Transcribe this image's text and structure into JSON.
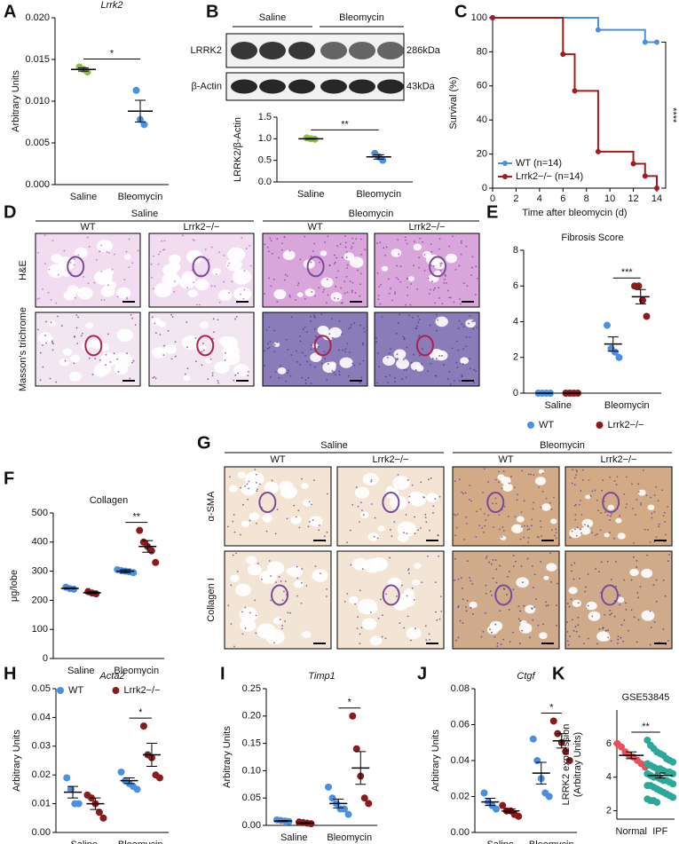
{
  "blot": {
    "panel": "B",
    "groups": [
      "Saline",
      "Bleomycin"
    ],
    "rows": [
      {
        "label": "LRRK2",
        "size": "286kDa"
      },
      {
        "label": "β-Actin",
        "size": "43kDa"
      }
    ]
  },
  "histology": [
    {
      "panel": "D",
      "groups": [
        "Saline",
        "Bleomycin"
      ],
      "columns": [
        "WT",
        "Lrrk2−/−",
        "WT",
        "Lrrk2−/−"
      ],
      "rows": [
        "H&E",
        "Masson's trichrome"
      ]
    },
    {
      "panel": "G",
      "groups": [
        "Saline",
        "Bleomycin"
      ],
      "columns": [
        "WT",
        "Lrrk2−/−",
        "WT",
        "Lrrk2−/−"
      ],
      "rows": [
        "α-SMA",
        "Collagen I"
      ]
    }
  ],
  "chart_data": [
    {
      "panel": "A",
      "type": "dotplot",
      "title": "Lrrk2",
      "title_style": "italic",
      "ylabel": "Arbitrary Units",
      "categories": [
        "Saline",
        "Bleomycin"
      ],
      "series": [
        {
          "colors": [
            "#8cbf3f",
            "#4a90e2"
          ],
          "points": [
            [
              0.0141,
              0.0138,
              0.0135
            ],
            [
              0.0113,
              0.0078,
              0.0072
            ]
          ],
          "means": [
            0.0138,
            0.0088
          ],
          "sems": [
            0.0002,
            0.0013
          ]
        }
      ],
      "ylim": [
        0,
        0.02
      ],
      "yticks": [
        {
          "value": 0,
          "label": "0.000"
        },
        {
          "value": 0.005,
          "label": "0.005"
        },
        {
          "value": 0.01,
          "label": "0.010"
        },
        {
          "value": 0.015,
          "label": "0.015"
        },
        {
          "value": 0.02,
          "label": "0.020"
        }
      ],
      "significance": "*"
    },
    {
      "type": "dotplot",
      "ylabel": "LRRK2/β-Actin",
      "categories": [
        "Saline",
        "Bleomycin"
      ],
      "series": [
        {
          "colors": [
            "#8cbf3f",
            "#4a90e2"
          ],
          "points": [
            [
              1.02,
              1.0,
              0.99
            ],
            [
              0.66,
              0.58,
              0.5
            ]
          ],
          "means": [
            1.0,
            0.58
          ],
          "sems": [
            0.01,
            0.05
          ]
        }
      ],
      "ylim": [
        0,
        1.5
      ],
      "yticks": [
        {
          "value": 0,
          "label": "0.0"
        },
        {
          "value": 0.5,
          "label": "0.5"
        },
        {
          "value": 1,
          "label": "1.0"
        },
        {
          "value": 1.5,
          "label": "1.5"
        }
      ],
      "significance": "**"
    },
    {
      "panel": "C",
      "type": "survival",
      "xlabel": "Time after bleomycin (d)",
      "ylabel": "Survival (%)",
      "series": [
        {
          "name": "WT (n=14)",
          "color": "#4a90e2",
          "x": [
            0,
            9,
            13,
            14
          ],
          "values": [
            100,
            92.9,
            85.7,
            85.7
          ]
        },
        {
          "name": "Lrrk2−/− (n=14)",
          "color": "#a01c1c",
          "x": [
            0,
            6,
            7,
            9,
            12,
            13,
            14
          ],
          "values": [
            100,
            78.6,
            57.1,
            21.4,
            14.3,
            7.1,
            0
          ]
        }
      ],
      "xlim": [
        0,
        14
      ],
      "xticks": [
        0,
        2,
        4,
        6,
        8,
        10,
        12,
        14
      ],
      "ylim": [
        0,
        100
      ],
      "yticks": [
        0,
        20,
        40,
        60,
        80,
        100
      ],
      "significance": "****"
    },
    {
      "panel": "E",
      "type": "dotplot",
      "title": "Fibrosis Score",
      "categories": [
        "Saline",
        "Bleomycin"
      ],
      "series": [
        {
          "name": "WT",
          "color": "#4a90e2",
          "points": [
            [
              0,
              0,
              0,
              0
            ],
            [
              3.8,
              2.5,
              2.3,
              2.0
            ]
          ],
          "means": [
            0,
            2.75
          ],
          "sems": [
            0,
            0.4
          ]
        },
        {
          "name": "Lrrk2−/−",
          "color": "#8b1a1a",
          "points": [
            [
              0,
              0,
              0,
              0
            ],
            [
              6.0,
              6.0,
              5.2,
              4.3
            ]
          ],
          "means": [
            0,
            5.4
          ],
          "sems": [
            0,
            0.4
          ]
        }
      ],
      "ylim": [
        0,
        8
      ],
      "yticks": [
        0,
        2,
        4,
        6,
        8
      ],
      "significance": "***",
      "legend": "bottom"
    },
    {
      "panel": "F",
      "type": "dotplot",
      "title": "Collagen",
      "ylabel": "μg/lobe",
      "categories": [
        "Saline",
        "Bleomycin"
      ],
      "series": [
        {
          "name": "WT",
          "color": "#4a90e2",
          "points": [
            [
              245,
              240,
              238
            ],
            [
              305,
              302,
              300,
              298,
              295
            ]
          ],
          "means": [
            241,
            300
          ],
          "sems": [
            2,
            5
          ]
        },
        {
          "name": "Lrrk2−/−",
          "color": "#8b1a1a",
          "points": [
            [
              230,
              225,
              222
            ],
            [
              440,
              400,
              385,
              370,
              330
            ]
          ],
          "means": [
            226,
            385
          ],
          "sems": [
            3,
            20
          ]
        }
      ],
      "ylim": [
        0,
        500
      ],
      "yticks": [
        0,
        100,
        200,
        300,
        400,
        500
      ],
      "significance": "**",
      "legend": "bottom"
    },
    {
      "panel": "H",
      "type": "dotplot",
      "title": "Acta2",
      "title_style": "italic",
      "ylabel": "Arbitrary Units",
      "categories": [
        "Saline",
        "Bleomycin"
      ],
      "series": [
        {
          "name": "WT",
          "color": "#4a90e2",
          "points": [
            [
              0.019,
              0.015,
              0.01,
              0.01
            ],
            [
              0.021,
              0.018,
              0.017,
              0.016,
              0.015
            ]
          ],
          "means": [
            0.014,
            0.018
          ],
          "sems": [
            0.002,
            0.001
          ]
        },
        {
          "name": "Lrrk2−/−",
          "color": "#8b1a1a",
          "points": [
            [
              0.013,
              0.012,
              0.01,
              0.007,
              0.005
            ],
            [
              0.037,
              0.027,
              0.026,
              0.02,
              0.019
            ]
          ],
          "means": [
            0.01,
            0.027
          ],
          "sems": [
            0.002,
            0.004
          ]
        }
      ],
      "ylim": [
        0,
        0.05
      ],
      "yticks": [
        {
          "value": 0,
          "label": "0.00"
        },
        {
          "value": 0.01,
          "label": "0.01"
        },
        {
          "value": 0.02,
          "label": "0.02"
        },
        {
          "value": 0.03,
          "label": "0.03"
        },
        {
          "value": 0.04,
          "label": "0.04"
        },
        {
          "value": 0.05,
          "label": "0.05"
        }
      ],
      "significance": "*"
    },
    {
      "panel": "I",
      "type": "dotplot",
      "title": "Timp1",
      "title_style": "italic",
      "ylabel": "Arbitrary Units",
      "categories": [
        "Saline",
        "Bleomycin"
      ],
      "series": [
        {
          "name": "WT",
          "color": "#4a90e2",
          "points": [
            [
              0.01,
              0.009,
              0.008,
              0.007
            ],
            [
              0.07,
              0.05,
              0.04,
              0.03,
              0.03,
              0.02
            ]
          ],
          "means": [
            0.008,
            0.04
          ],
          "sems": [
            0.001,
            0.008
          ]
        },
        {
          "name": "Lrrk2−/−",
          "color": "#8b1a1a",
          "points": [
            [
              0.006,
              0.005,
              0.004,
              0.003
            ],
            [
              0.2,
              0.14,
              0.09,
              0.05,
              0.04
            ]
          ],
          "means": [
            0.004,
            0.105
          ],
          "sems": [
            0.001,
            0.03
          ]
        }
      ],
      "ylim": [
        0,
        0.25
      ],
      "yticks": [
        {
          "value": 0,
          "label": "0.00"
        },
        {
          "value": 0.05,
          "label": "0.05"
        },
        {
          "value": 0.1,
          "label": "0.10"
        },
        {
          "value": 0.15,
          "label": "0.15"
        },
        {
          "value": 0.2,
          "label": "0.20"
        },
        {
          "value": 0.25,
          "label": "0.25"
        }
      ],
      "significance": "*",
      "legend": "bottom"
    },
    {
      "panel": "J",
      "type": "dotplot",
      "title": "Ctgf",
      "title_style": "italic",
      "ylabel": "Arbitrary Units",
      "categories": [
        "Saline",
        "Bleomycin"
      ],
      "series": [
        {
          "name": "WT",
          "color": "#4a90e2",
          "points": [
            [
              0.022,
              0.017,
              0.015,
              0.013
            ],
            [
              0.052,
              0.04,
              0.03,
              0.022,
              0.02
            ]
          ],
          "means": [
            0.017,
            0.033
          ],
          "sems": [
            0.002,
            0.006
          ]
        },
        {
          "name": "Lrrk2−/−",
          "color": "#8b1a1a",
          "points": [
            [
              0.015,
              0.012,
              0.012,
              0.01,
              0.009
            ],
            [
              0.062,
              0.055,
              0.05,
              0.045,
              0.04
            ]
          ],
          "means": [
            0.012,
            0.051
          ],
          "sems": [
            0.001,
            0.004
          ]
        }
      ],
      "ylim": [
        0,
        0.08
      ],
      "yticks": [
        {
          "value": 0,
          "label": "0.00"
        },
        {
          "value": 0.02,
          "label": "0.02"
        },
        {
          "value": 0.04,
          "label": "0.04"
        },
        {
          "value": 0.06,
          "label": "0.06"
        },
        {
          "value": 0.08,
          "label": "0.08"
        }
      ],
      "significance": "*"
    },
    {
      "panel": "K",
      "type": "dotplot",
      "title": "GSE53845",
      "ylabel": [
        "LRRK2 expression",
        "(Arbitray Units)"
      ],
      "categories": [
        "Normal",
        "IPF"
      ],
      "series": [
        {
          "colors": [
            "#e8505b",
            "#2aa89a"
          ],
          "points": [
            [
              6.0,
              5.8,
              5.5,
              5.3,
              5.2,
              5.0,
              4.8,
              4.6
            ],
            [
              6.2,
              5.9,
              5.7,
              5.5,
              5.4,
              5.3,
              5.1,
              5.0,
              4.9,
              4.8,
              4.7,
              4.6,
              4.5,
              4.5,
              4.4,
              4.3,
              4.3,
              4.2,
              4.2,
              4.1,
              4.0,
              4.0,
              3.9,
              3.8,
              3.8,
              3.7,
              3.6,
              3.5,
              3.5,
              3.4,
              3.3,
              3.2,
              3.1,
              3.0,
              2.9,
              2.8,
              2.7,
              2.6,
              2.6,
              2.5
            ]
          ],
          "means": [
            5.3,
            4.1
          ],
          "sems": [
            0.2,
            0.15
          ]
        }
      ],
      "ylim": [
        1.5,
        8
      ],
      "yticks": [
        2,
        4,
        6
      ],
      "significance": "**"
    }
  ]
}
